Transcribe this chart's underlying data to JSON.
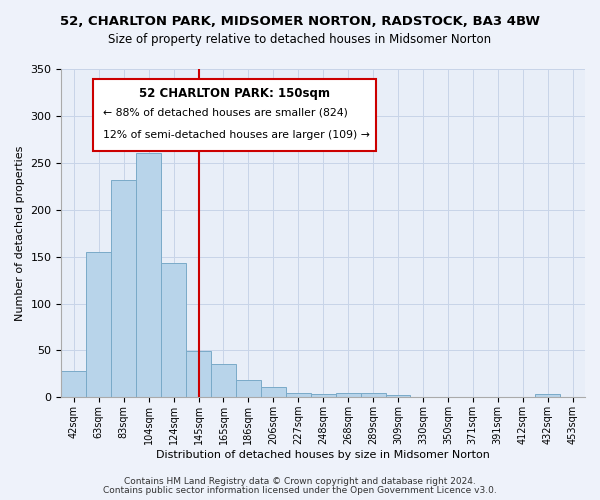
{
  "title": "52, CHARLTON PARK, MIDSOMER NORTON, RADSTOCK, BA3 4BW",
  "subtitle": "Size of property relative to detached houses in Midsomer Norton",
  "xlabel": "Distribution of detached houses by size in Midsomer Norton",
  "ylabel": "Number of detached properties",
  "bar_color": "#b8d4ea",
  "bar_edge_color": "#7aaac8",
  "bin_labels": [
    "42sqm",
    "63sqm",
    "83sqm",
    "104sqm",
    "124sqm",
    "145sqm",
    "165sqm",
    "186sqm",
    "206sqm",
    "227sqm",
    "248sqm",
    "268sqm",
    "289sqm",
    "309sqm",
    "330sqm",
    "350sqm",
    "371sqm",
    "391sqm",
    "412sqm",
    "432sqm",
    "453sqm"
  ],
  "bar_heights": [
    28,
    155,
    232,
    260,
    143,
    49,
    35,
    18,
    11,
    5,
    3,
    5,
    5,
    2,
    0,
    0,
    0,
    0,
    0,
    3,
    0
  ],
  "ylim": [
    0,
    350
  ],
  "yticks": [
    0,
    50,
    100,
    150,
    200,
    250,
    300,
    350
  ],
  "vline_x_idx": 5,
  "vline_color": "#cc0000",
  "annotation_title": "52 CHARLTON PARK: 150sqm",
  "annotation_line1": "← 88% of detached houses are smaller (824)",
  "annotation_line2": "12% of semi-detached houses are larger (109) →",
  "footer_line1": "Contains HM Land Registry data © Crown copyright and database right 2024.",
  "footer_line2": "Contains public sector information licensed under the Open Government Licence v3.0.",
  "background_color": "#eef2fa",
  "plot_bg_color": "#e8eef8",
  "grid_color": "#c8d4e8"
}
